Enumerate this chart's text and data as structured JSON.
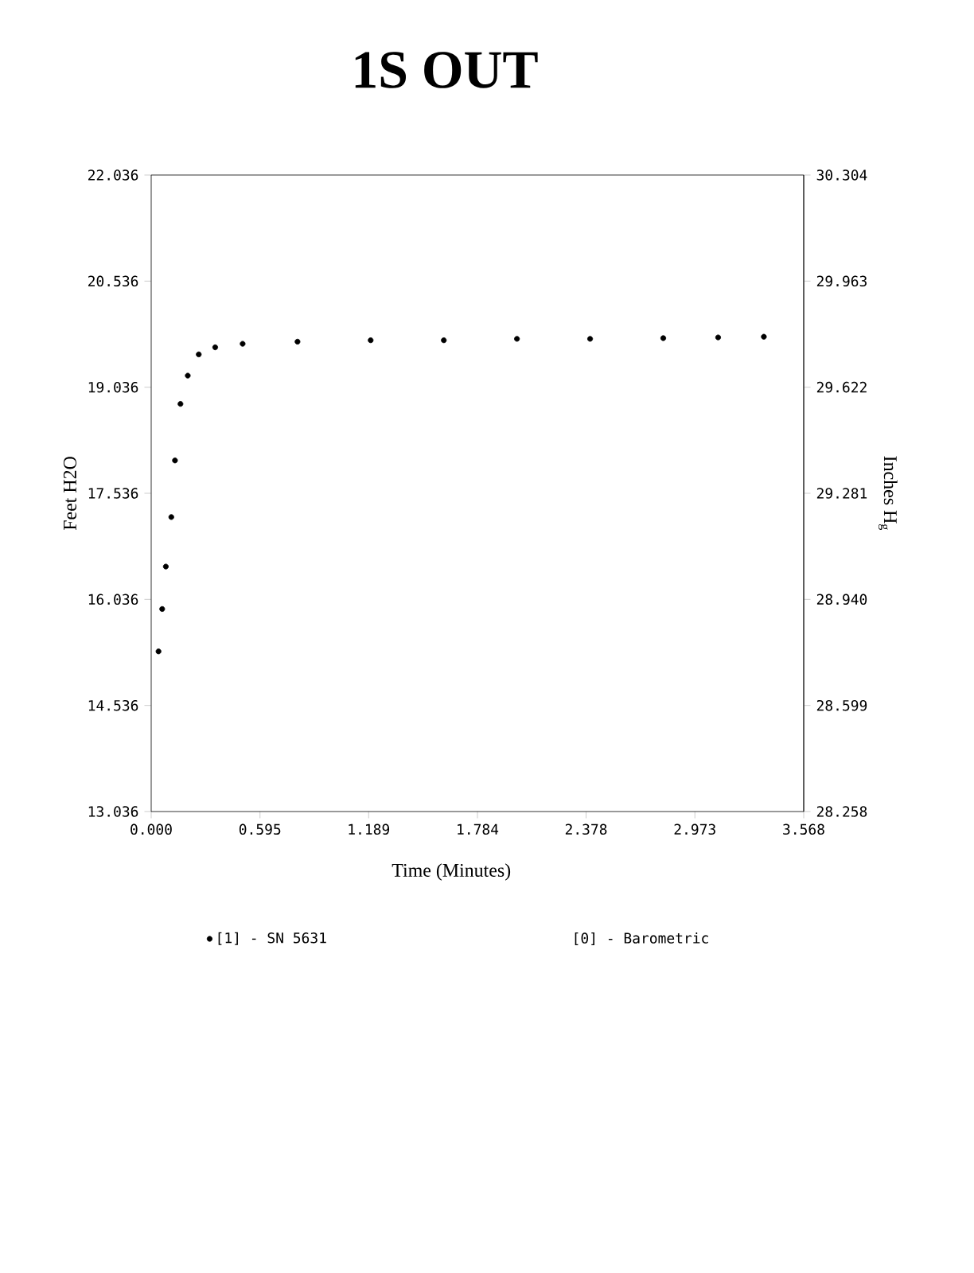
{
  "chart_data": {
    "type": "scatter",
    "title": "1S OUT",
    "xlabel": "Time (Minutes)",
    "ylabel": "Feet H2O",
    "y2label": "Inches H$_{g}$",
    "annotations": [
      "[0] - Barometric"
    ],
    "legend": "bottom",
    "grid": false,
    "xlim": [
      0,
      3.568
    ],
    "ylim": [
      13.036,
      22.036
    ],
    "y2lim": [
      28.258,
      30.304
    ],
    "xticks": [
      {
        "value": 0,
        "label": "0.000"
      },
      0.595,
      1.189,
      1.784,
      2.378,
      2.973,
      3.568
    ],
    "yticks": [
      13.036,
      14.536,
      16.036,
      17.536,
      19.036,
      20.536,
      22.036
    ],
    "y2ticks": [
      28.258,
      28.599,
      {
        "value": 28.94,
        "label": "28.940"
      },
      29.281,
      29.622,
      29.963,
      30.304
    ],
    "x": [
      0.04,
      0.06,
      0.08,
      0.11,
      0.13,
      0.16,
      0.2,
      0.26,
      0.35,
      0.5,
      0.8,
      1.2,
      1.6,
      2.0,
      2.4,
      2.8,
      3.1,
      3.35
    ],
    "series": [
      {
        "name": "[1] - SN 5631",
        "color": "#000000",
        "values": [
          15.3,
          15.9,
          16.5,
          17.2,
          18.0,
          18.8,
          19.2,
          19.5,
          19.6,
          19.65,
          19.68,
          19.7,
          19.7,
          19.72,
          19.72,
          19.73,
          19.74,
          19.75
        ]
      }
    ]
  }
}
